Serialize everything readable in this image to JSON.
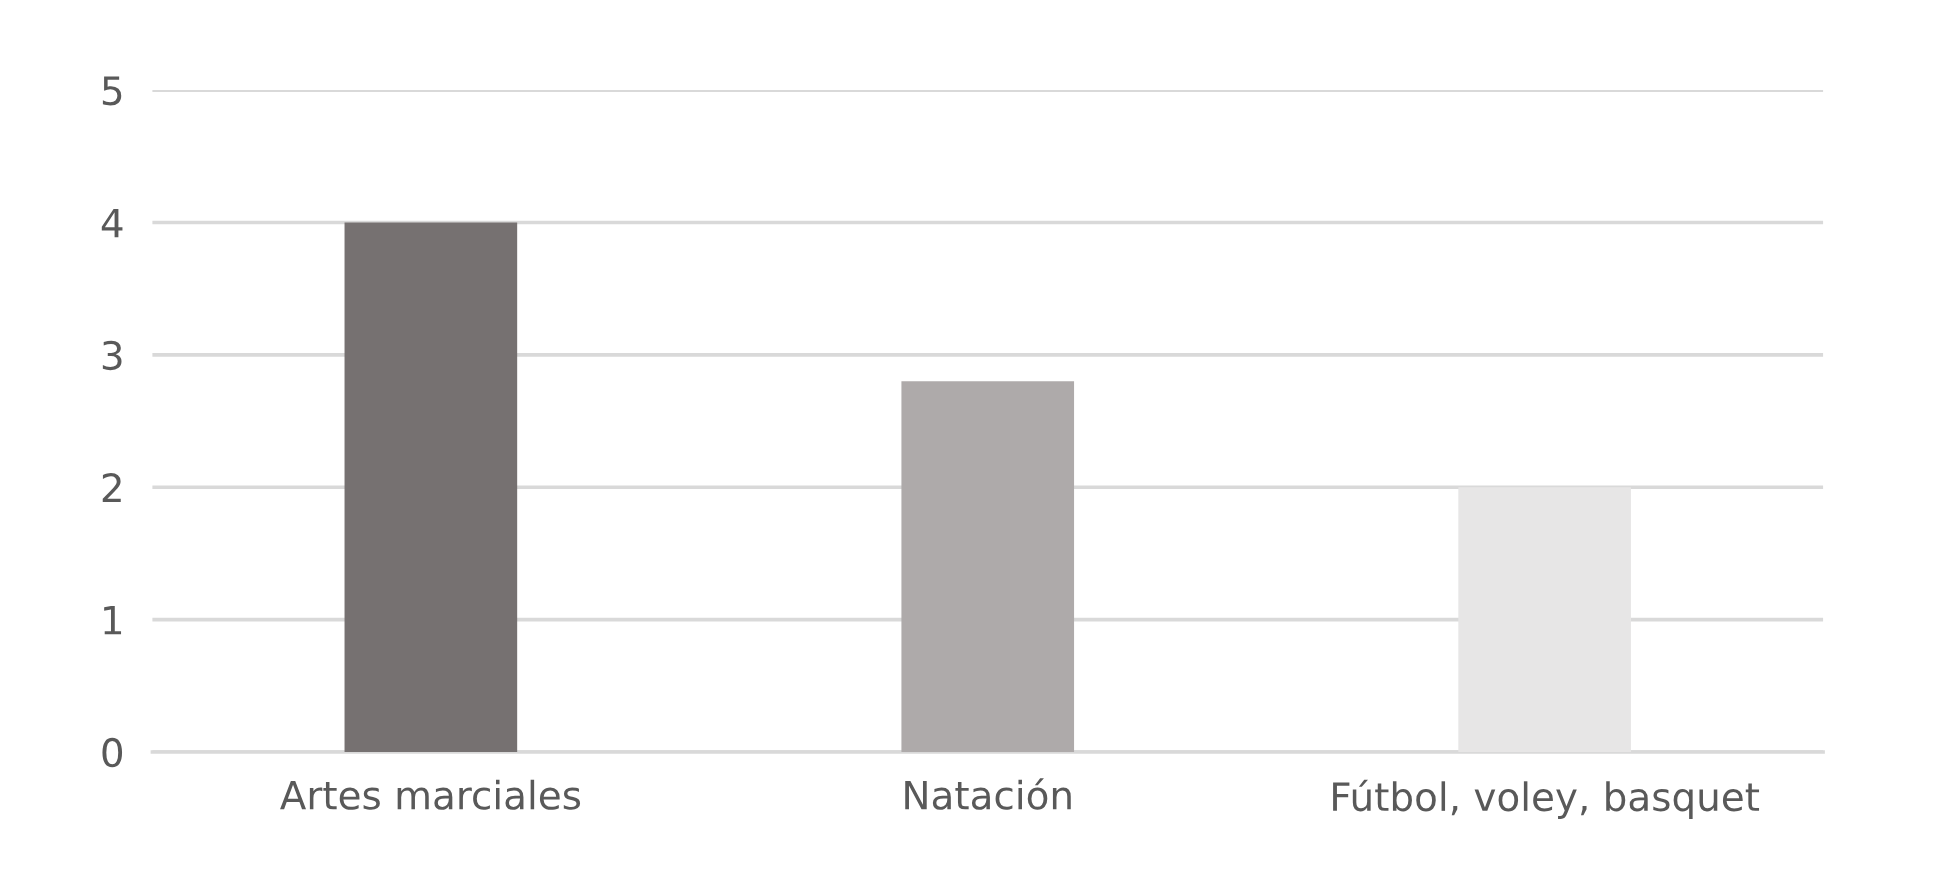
{
  "chart_data": {
    "type": "bar",
    "categories": [
      "Artes marciales",
      "Natación",
      "Fútbol, voley, basquet"
    ],
    "values": [
      4,
      2.8,
      2
    ],
    "colors": [
      "#767171",
      "#aeaaaa",
      "#e7e6e6"
    ],
    "ylim": [
      0,
      5
    ],
    "yticks": [
      0,
      1,
      2,
      3,
      4,
      5
    ],
    "grid": "y"
  }
}
